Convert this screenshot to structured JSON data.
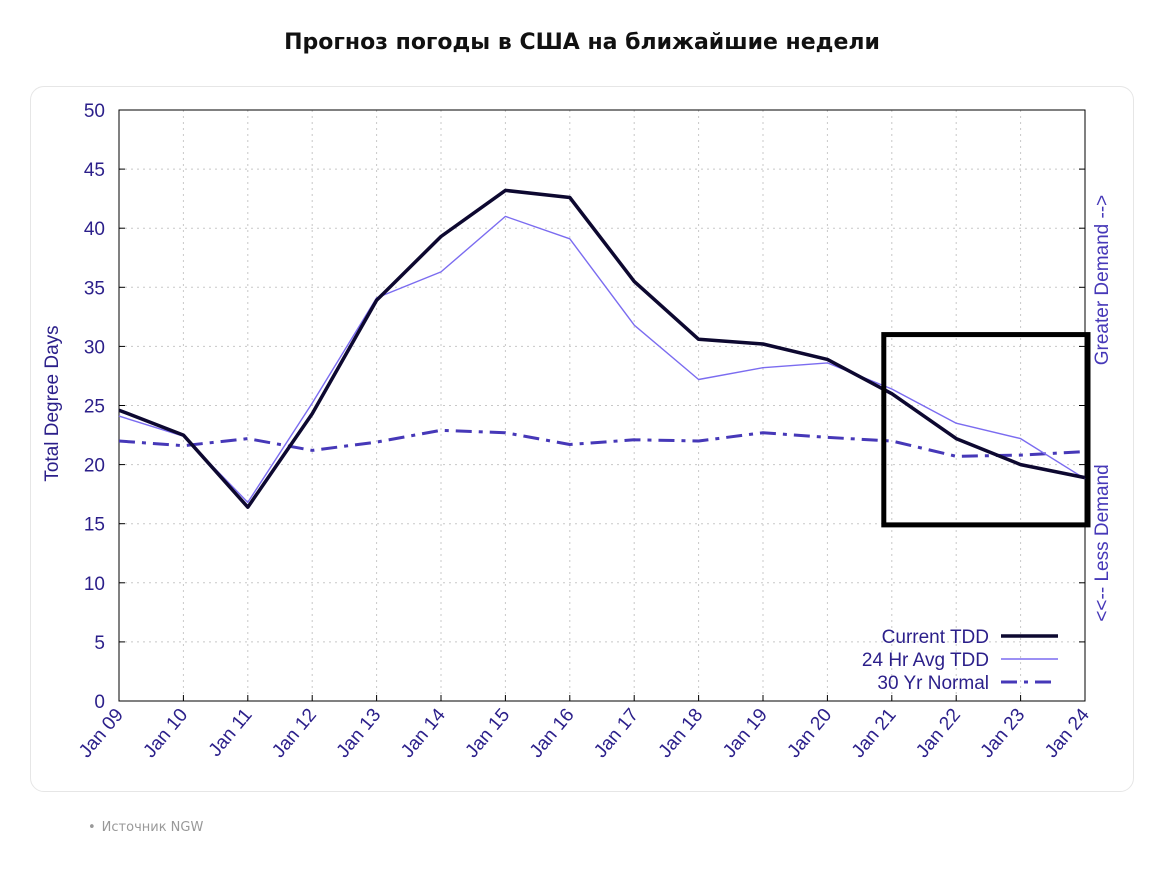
{
  "page": {
    "title": "Прогноз погоды в США на ближайшие недели",
    "source_label": "Источник NGW"
  },
  "colors": {
    "axis_text": "#2b1f8a",
    "current": "#0d0830",
    "avg": "#7b6cf0",
    "normal": "#4638b8",
    "grid": "#c8c8c8",
    "highlight_box": "#000000"
  },
  "chart_data": {
    "type": "line",
    "title": "",
    "ylabel": "Total Degree Days",
    "ylabel_right_top": "Greater Demand -->",
    "ylabel_right_bottom": "<<-- Less Demand",
    "categories": [
      "Jan 09",
      "Jan 10",
      "Jan 11",
      "Jan 12",
      "Jan 13",
      "Jan 14",
      "Jan 15",
      "Jan 16",
      "Jan 17",
      "Jan 18",
      "Jan 19",
      "Jan 20",
      "Jan 21",
      "Jan 22",
      "Jan 23",
      "Jan 24"
    ],
    "ylim": [
      0,
      50
    ],
    "yticks": [
      0,
      5,
      10,
      15,
      20,
      25,
      30,
      35,
      40,
      45,
      50
    ],
    "grid": true,
    "legend_position": "bottom-right",
    "series": [
      {
        "name": "Current TDD",
        "style": "solid-thick",
        "values": [
          24.6,
          22.5,
          16.4,
          24.3,
          33.9,
          39.3,
          43.2,
          42.6,
          35.5,
          30.6,
          30.2,
          28.9,
          26.0,
          22.2,
          20.0,
          18.9
        ]
      },
      {
        "name": "24 Hr Avg TDD",
        "style": "solid-thin",
        "values": [
          24.1,
          22.4,
          16.8,
          25.2,
          34.1,
          36.3,
          41.0,
          39.1,
          31.8,
          27.2,
          28.2,
          28.6,
          26.4,
          23.5,
          22.2,
          18.8
        ]
      },
      {
        "name": "30 Yr Normal",
        "style": "dash-dot",
        "values": [
          22.0,
          21.6,
          22.2,
          21.2,
          21.9,
          22.9,
          22.7,
          21.7,
          22.1,
          22.0,
          22.7,
          22.3,
          22.0,
          20.7,
          20.8,
          21.1
        ]
      }
    ],
    "highlight": {
      "x_from": "Jan 21",
      "x_to": "Jan 24",
      "y_from": 14.9,
      "y_to": 31.0
    }
  }
}
